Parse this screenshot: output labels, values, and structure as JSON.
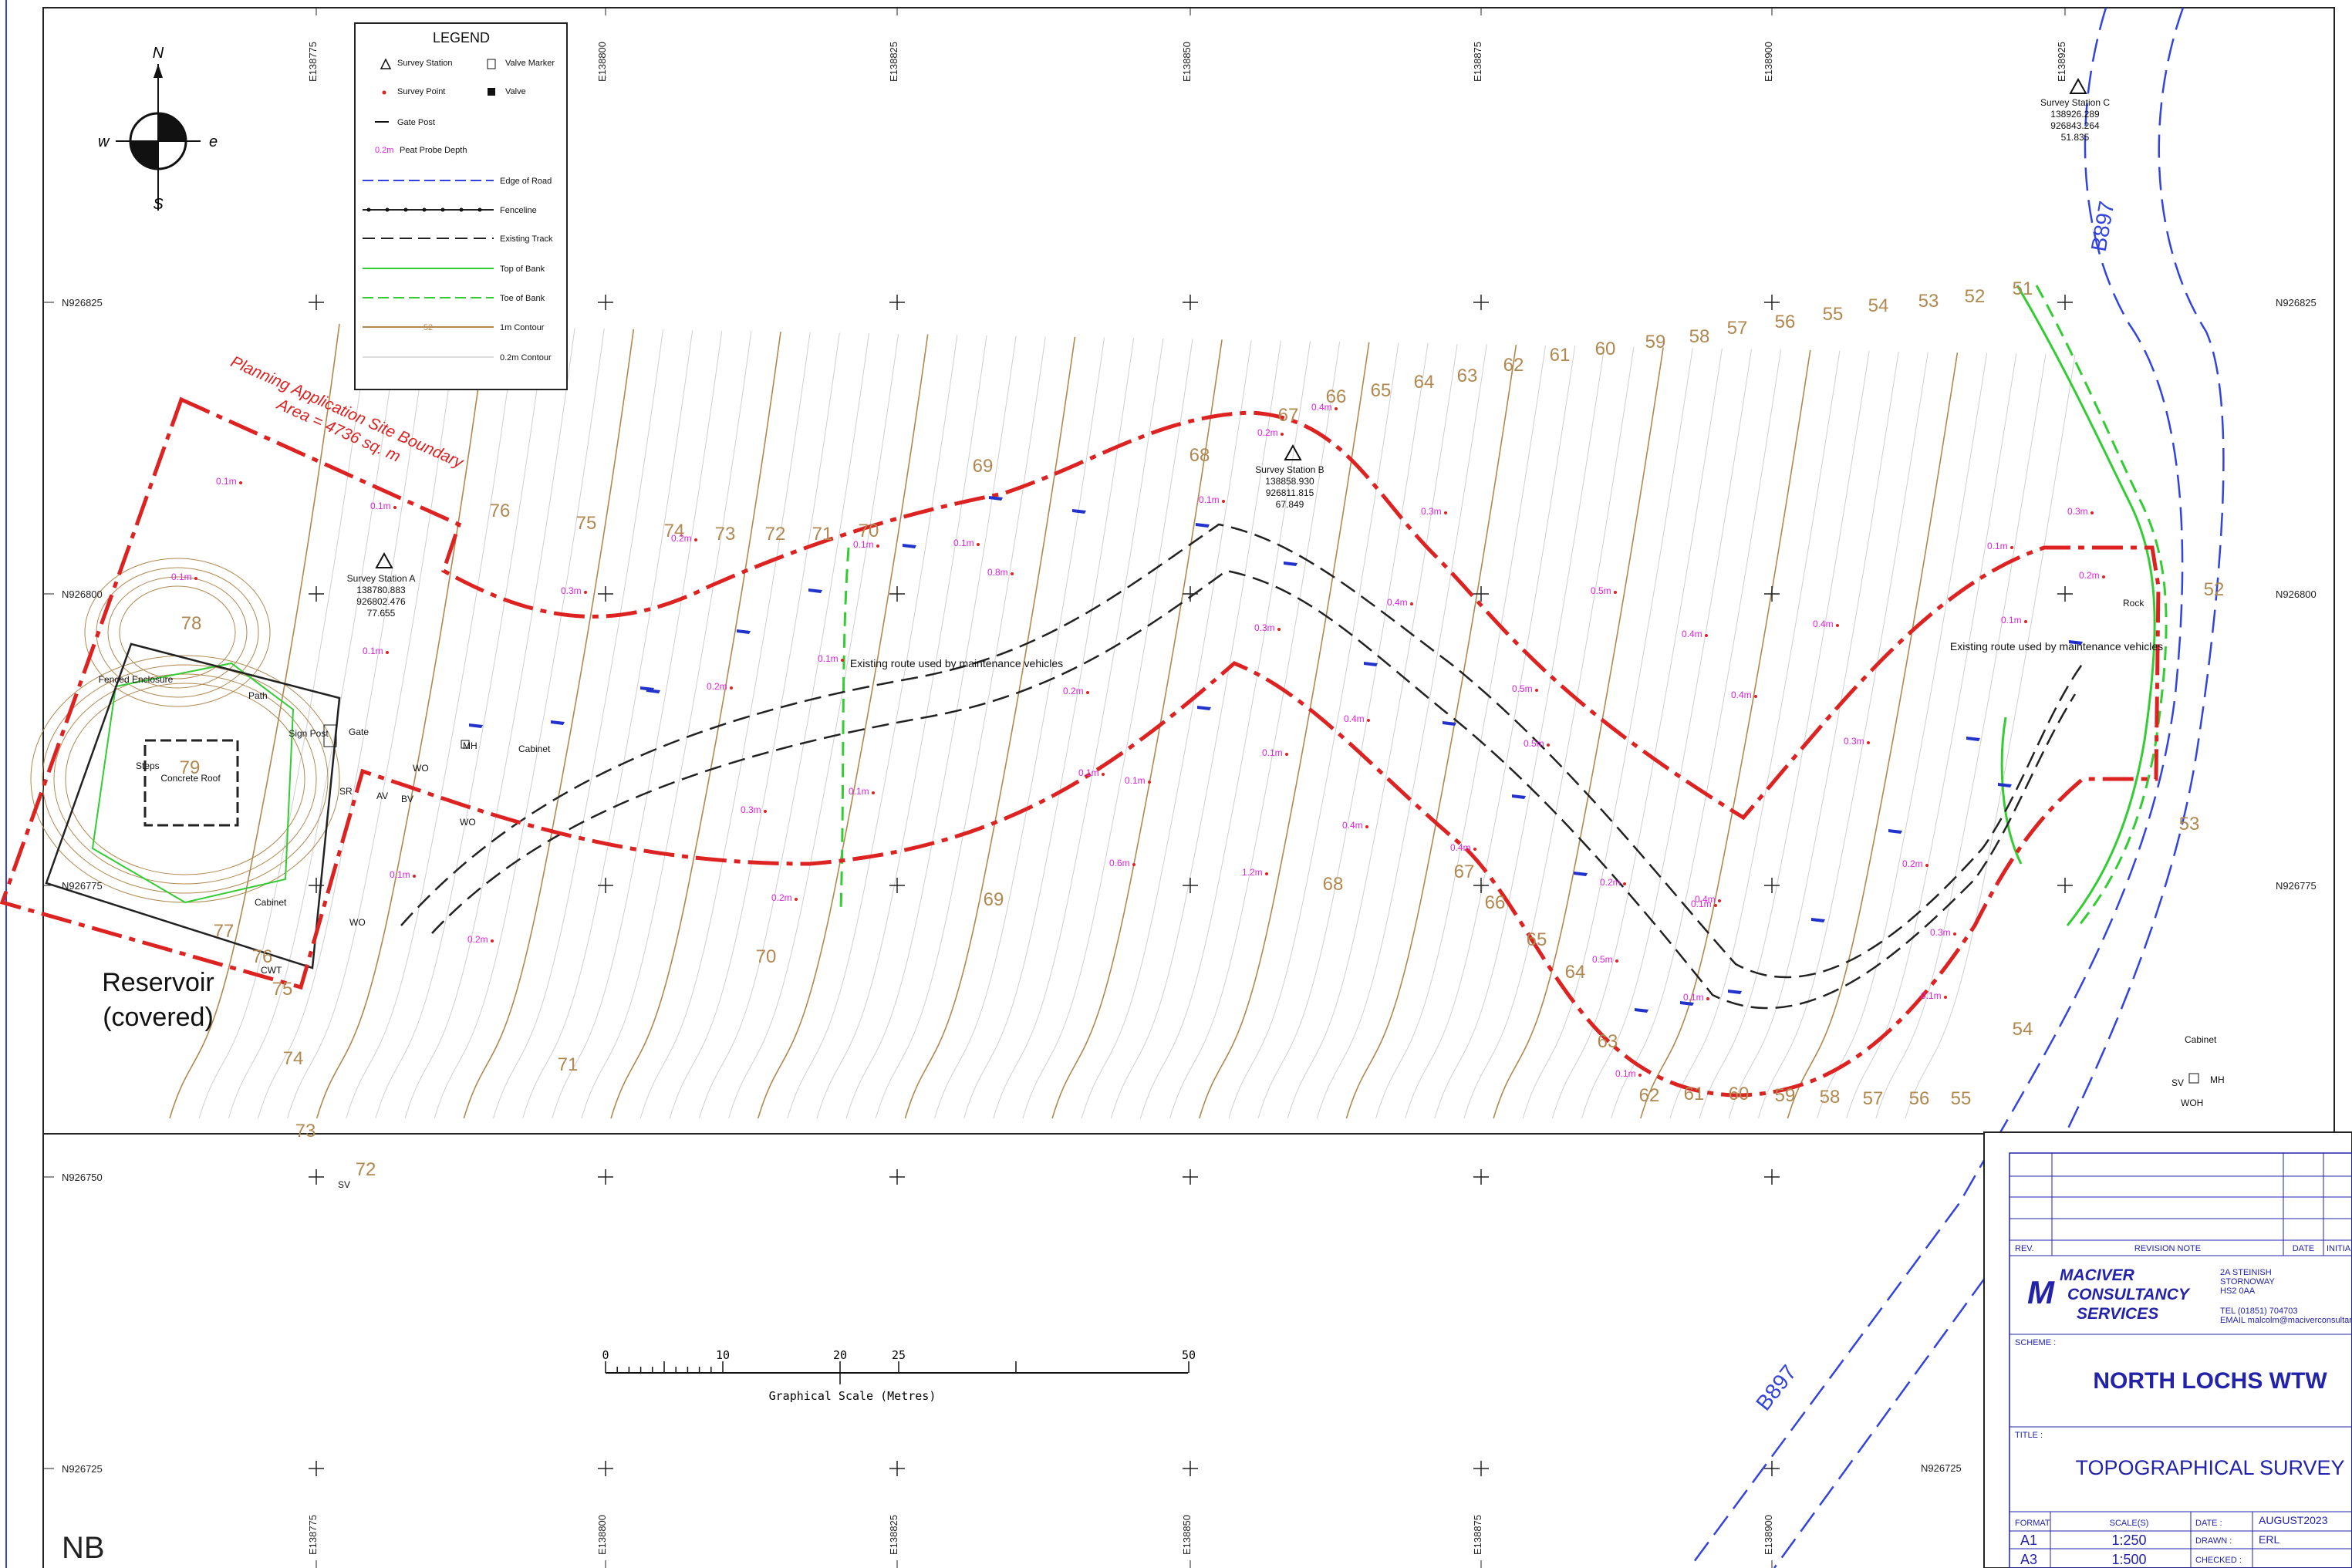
{
  "grid": {
    "eastings": [
      "E138775",
      "E138800",
      "E138825",
      "E138850",
      "E138875",
      "E138900",
      "E138925"
    ],
    "northings": [
      "N926825",
      "N926800",
      "N926775",
      "N926750",
      "N926725"
    ]
  },
  "compass": {
    "n": "N",
    "s": "S",
    "e": "e",
    "w": "w"
  },
  "legend": {
    "title": "LEGEND",
    "items": [
      {
        "label": "Survey Station",
        "icon": "survey-station-icon"
      },
      {
        "label": "Valve Marker",
        "icon": "valve-marker-icon"
      },
      {
        "label": "Survey Point",
        "icon": "survey-point-icon"
      },
      {
        "label": "Valve",
        "icon": "valve-icon"
      },
      {
        "label": "Gate Post",
        "icon": "gate-post-icon"
      },
      {
        "label": "Peat Probe Depth",
        "sample": "0.2m"
      },
      {
        "label": "Edge of Road",
        "color": "#3344dd"
      },
      {
        "label": "Fenceline",
        "color": "#222222"
      },
      {
        "label": "Existing Track",
        "color": "#222222"
      },
      {
        "label": "Top of Bank",
        "color": "#33cc33"
      },
      {
        "label": "Toe of Bank",
        "color": "#33cc33"
      },
      {
        "label": "1m Contour",
        "color": "#b08850",
        "sample": "52"
      },
      {
        "label": "0.2m Contour",
        "color": "#bbbbbb"
      }
    ]
  },
  "planning": {
    "title": "Planning Application Site Boundary",
    "area": "Area = 4736 sq. m",
    "color": "#dd2222"
  },
  "stations": [
    {
      "name": "Survey Station A",
      "e": "138780.883",
      "n": "926802.476",
      "z": "77.655"
    },
    {
      "name": "Survey Station B",
      "e": "138858.930",
      "n": "926811.815",
      "z": "67.849"
    },
    {
      "name": "Survey Station C",
      "e": "138926.289",
      "n": "926843.264",
      "z": "51.835"
    }
  ],
  "contour_labels_top": [
    "67",
    "66",
    "65",
    "64",
    "63",
    "62",
    "61",
    "60",
    "59",
    "58",
    "57",
    "56",
    "55",
    "54",
    "53",
    "52",
    "51"
  ],
  "contour_labels_left": [
    "76",
    "75",
    "74",
    "73",
    "72",
    "71",
    "70",
    "69",
    "68"
  ],
  "contour_labels_bottom": [
    "69",
    "70",
    "71",
    "72",
    "73",
    "74",
    "75",
    "76",
    "77",
    "78",
    "79",
    "68",
    "67",
    "66",
    "65",
    "64",
    "63",
    "62",
    "61",
    "60",
    "59",
    "58",
    "57",
    "56",
    "55",
    "54",
    "53",
    "52"
  ],
  "peat_depths": [
    "0.1m",
    "0.2m",
    "0.3m",
    "0.4m",
    "0.5m",
    "0.6m",
    "0.8m",
    "1.2m"
  ],
  "features": {
    "fenced": "Fenced Enclosure",
    "path": "Path",
    "steps": "Steps",
    "roof": "Concrete Roof",
    "sign": "Sign Post",
    "gate": "Gate",
    "cabinet": "Cabinet",
    "mh": "MH",
    "wo": "WO",
    "sr": "SR",
    "av": "AV",
    "bv": "BV",
    "sv": "SV",
    "cwt": "CWT",
    "woh": "WOH",
    "rock": "Rock",
    "route": "Existing route used by maintenance vehicles",
    "reservoir1": "Reservoir",
    "reservoir2": "(covered)",
    "road": "B897"
  },
  "scale_bar": {
    "ticks": [
      "0",
      "10",
      "20",
      "25",
      "50"
    ],
    "caption": "Graphical Scale (Metres)"
  },
  "nb": "NB",
  "title_block": {
    "rev": "REV.",
    "revision_note": "REVISION NOTE",
    "date_h": "DATE",
    "initial": "INITIAL",
    "company_lines": [
      "MACIVER",
      "CONSULTANCY",
      "SERVICES"
    ],
    "address": [
      "2A STEINISH",
      "STORNOWAY",
      "HS2 0AA"
    ],
    "tel": "TEL (01851) 704703",
    "email": "EMAIL malcolm@maciverconsultancy.co",
    "scheme_label": "SCHEME :",
    "scheme": "NORTH LOCHS WTW",
    "title_label": "TITLE :",
    "title": "TOPOGRAPHICAL SURVEY",
    "format_h": "FORMAT",
    "scales_h": "SCALE(S)",
    "date_label": "DATE :",
    "date": "AUGUST2023",
    "drawn_label": "DRAWN :",
    "drawn": "ERL",
    "checked_label": "CHECKED :",
    "formats": [
      {
        "f": "A1",
        "s": "1:250"
      },
      {
        "f": "A3",
        "s": "1:500"
      }
    ]
  }
}
